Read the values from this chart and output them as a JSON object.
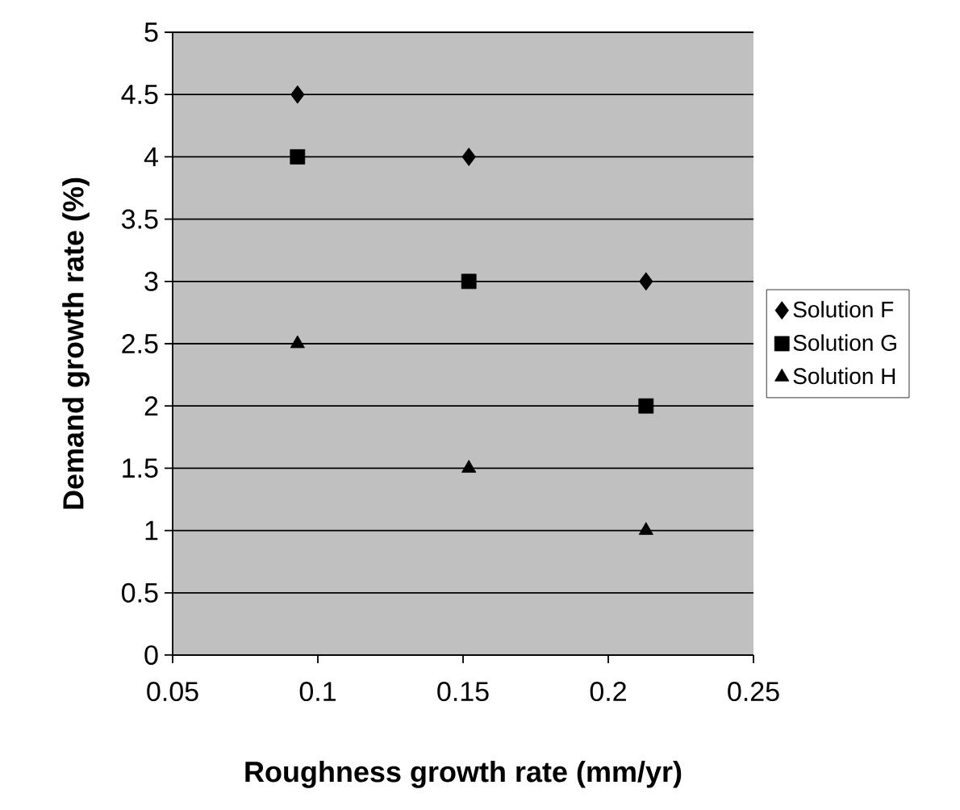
{
  "chart_data": {
    "type": "scatter",
    "xlabel": "Roughness growth rate (mm/yr)",
    "ylabel": "Demand growth rate (%)",
    "xlim": [
      0.05,
      0.25
    ],
    "xticks": [
      0.05,
      0.1,
      0.15,
      0.2,
      0.25
    ],
    "ylim": [
      0,
      5
    ],
    "yticks": [
      0,
      0.5,
      1,
      1.5,
      2,
      2.5,
      3,
      3.5,
      4,
      4.5,
      5
    ],
    "grid": "y",
    "legend": "right",
    "series": [
      {
        "name": "Solution F",
        "color": "#000000",
        "marker": "diamond",
        "x": [
          0.093,
          0.152,
          0.213
        ],
        "values": [
          4.5,
          4,
          3
        ]
      },
      {
        "name": "Solution G",
        "color": "#000000",
        "marker": "square",
        "x": [
          0.093,
          0.152,
          0.213
        ],
        "values": [
          4,
          3,
          2
        ]
      },
      {
        "name": "Solution H",
        "color": "#000000",
        "marker": "triangle",
        "x": [
          0.093,
          0.152,
          0.213
        ],
        "values": [
          2.5,
          1.5,
          1
        ]
      }
    ]
  }
}
